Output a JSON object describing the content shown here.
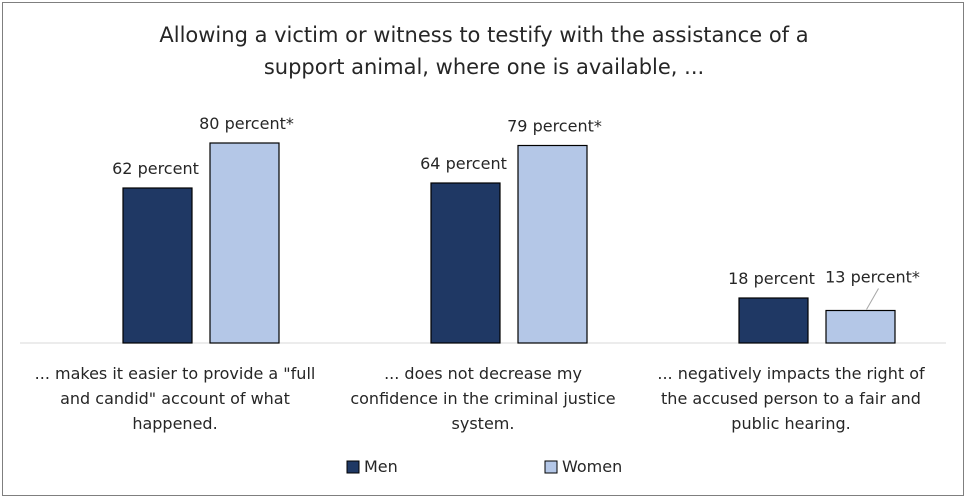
{
  "chart_data": {
    "type": "bar",
    "title": [
      "Allowing a victim or witness to testify with the assistance of a",
      "support animal, where one is available, ..."
    ],
    "categories": [
      [
        "... makes it easier to provide a \"full",
        "and candid\" account of what",
        "happened."
      ],
      [
        "... does not decrease my",
        "confidence in the criminal justice",
        "system."
      ],
      [
        "... negatively impacts the right of",
        "the accused person to a fair and",
        "public hearing."
      ]
    ],
    "series": [
      {
        "name": "Men",
        "color": "#1f3864",
        "values": [
          62,
          64,
          18
        ],
        "labels": [
          "62 percent",
          "64 percent",
          "18 percent"
        ]
      },
      {
        "name": "Women",
        "color": "#b4c7e7",
        "values": [
          80,
          79,
          13
        ],
        "labels": [
          "80 percent*",
          "79 percent*",
          "13 percent*"
        ]
      }
    ],
    "ylim": [
      0,
      100
    ],
    "grid": false,
    "legend": "bottom"
  }
}
